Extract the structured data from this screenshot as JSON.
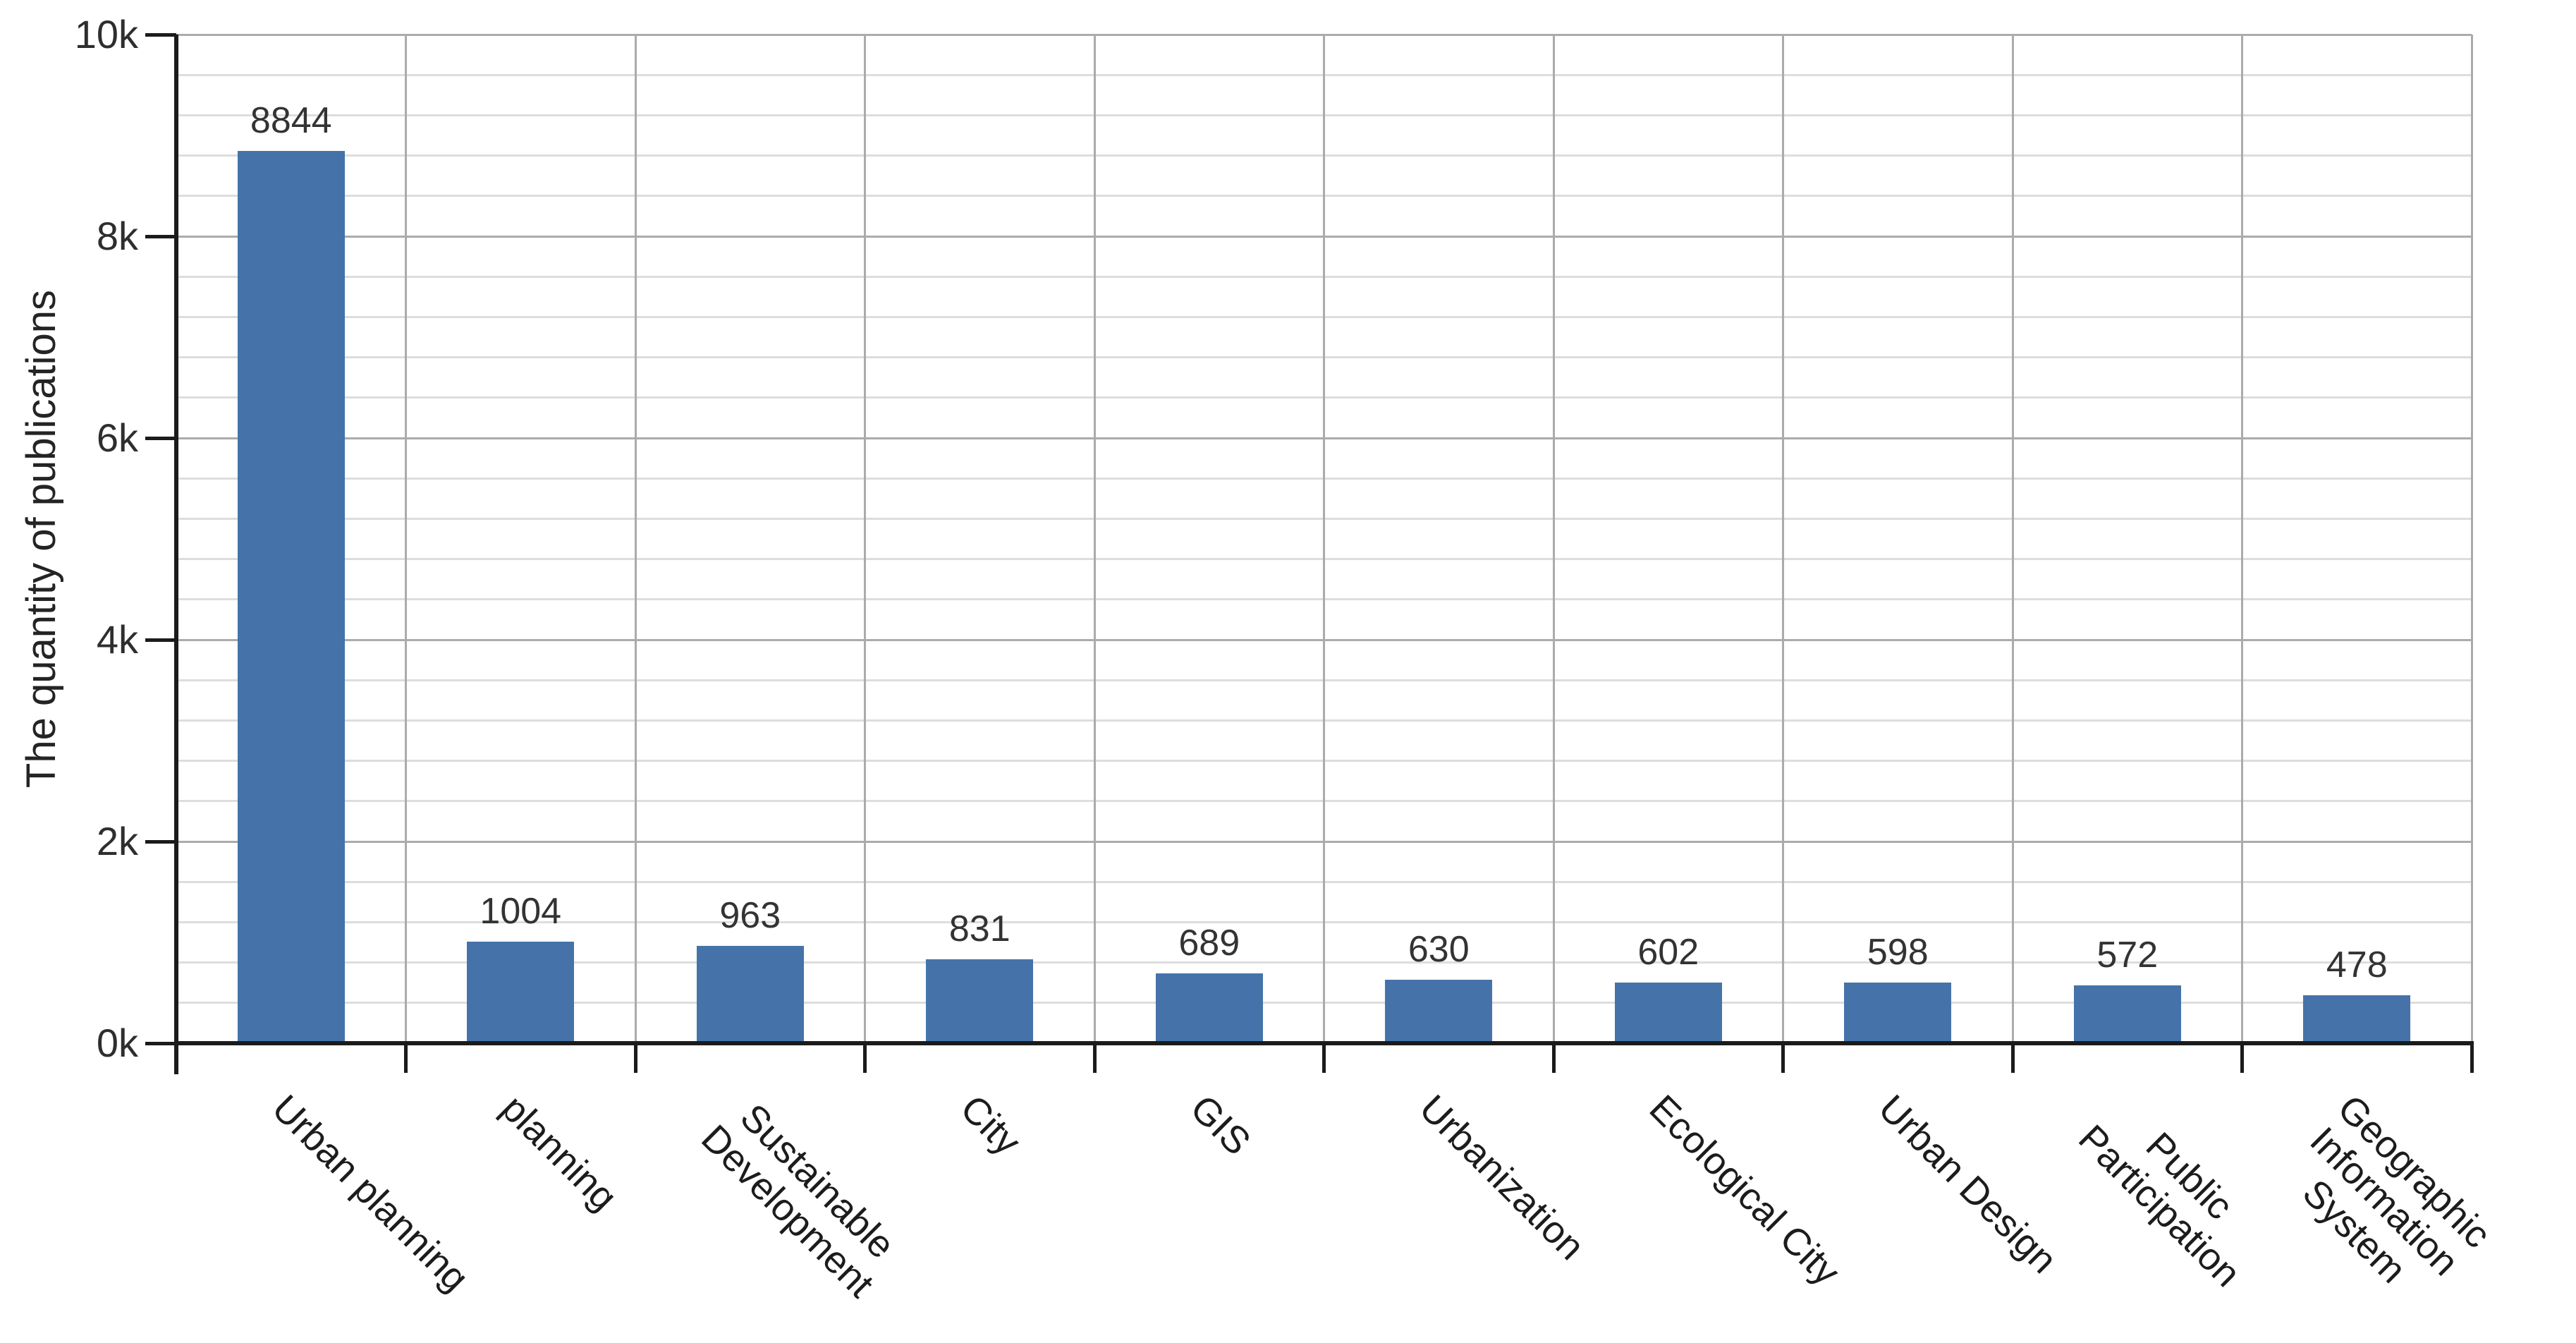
{
  "chart_data": {
    "type": "bar",
    "title": "",
    "xlabel": "",
    "ylabel": "The quantity of publications",
    "categories": [
      "Urban planning",
      "planning",
      "Sustainable\nDevelopment",
      "City",
      "GIS",
      "Urbanization",
      "Ecological City",
      "Urban Design",
      "Public\nParticipation",
      "Geographic\nInformation\nSystem"
    ],
    "values": [
      8844,
      1004,
      963,
      831,
      689,
      630,
      602,
      598,
      572,
      478
    ],
    "bar_value_labels": [
      "8844",
      "1004",
      "963",
      "831",
      "689",
      "630",
      "602",
      "598",
      "572",
      "478"
    ],
    "ylim": [
      0,
      10000
    ],
    "ytick_values": [
      0,
      2000,
      4000,
      6000,
      8000,
      10000
    ],
    "ytick_labels": [
      "0k",
      "2k",
      "4k",
      "6k",
      "8k",
      "10k"
    ],
    "minor_gridline_step": 400,
    "grid": "horizontal-major-and-minor, vertical-at-category-boundaries",
    "legend": "none",
    "colors": {
      "bar": "#4573a9",
      "major_gridline": "#ababab",
      "minor_gridline": "#dddddd",
      "axis": "#1b1b1b",
      "value_label_text": "#333333",
      "tick_label_text": "#2e2e2e",
      "category_label_text": "#1c1c1c",
      "axis_title_text": "#242424"
    }
  }
}
